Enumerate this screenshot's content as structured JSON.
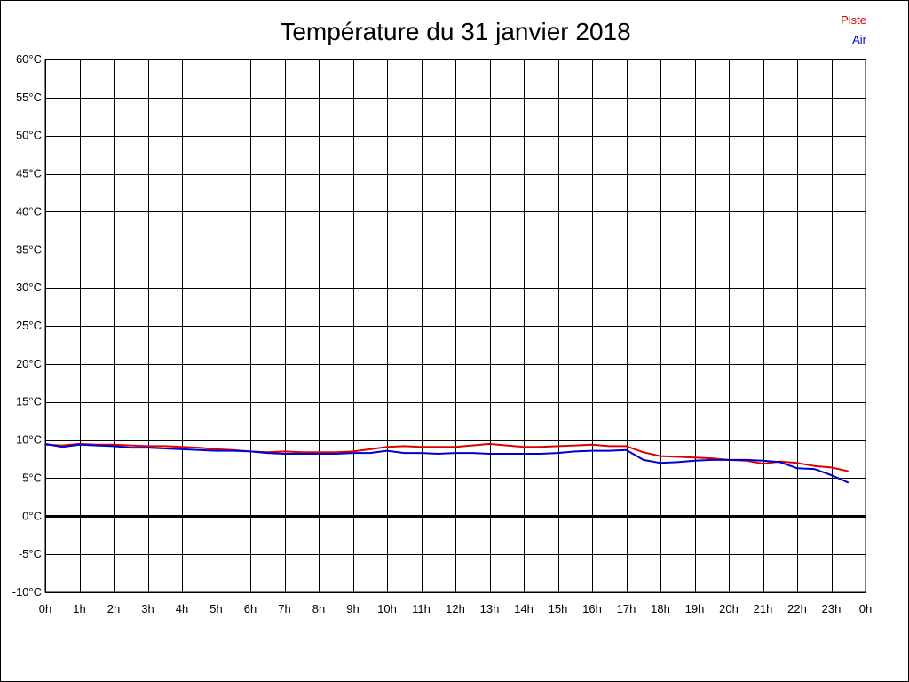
{
  "chart_data": {
    "type": "line",
    "title": "Température du 31 janvier 2018",
    "xlabel": "",
    "ylabel": "",
    "ylim": [
      -10,
      60
    ],
    "xlim": [
      0,
      24
    ],
    "grid": true,
    "legend_position": "top-right",
    "y_ticks": [
      "60°C",
      "55°C",
      "50°C",
      "45°C",
      "40°C",
      "35°C",
      "30°C",
      "25°C",
      "20°C",
      "15°C",
      "10°C",
      "5°C",
      "0°C",
      "-5°C",
      "-10°C"
    ],
    "x_ticks": [
      "0h",
      "1h",
      "2h",
      "3h",
      "4h",
      "5h",
      "6h",
      "7h",
      "8h",
      "9h",
      "10h",
      "11h",
      "12h",
      "13h",
      "14h",
      "15h",
      "16h",
      "17h",
      "18h",
      "19h",
      "20h",
      "21h",
      "22h",
      "23h",
      "0h"
    ],
    "series": [
      {
        "name": "Piste",
        "color": "#dd0000",
        "x": [
          0,
          0.5,
          1,
          1.5,
          2,
          2.5,
          3,
          3.5,
          4,
          4.5,
          5,
          5.5,
          6,
          6.5,
          7,
          7.5,
          8,
          8.5,
          9,
          9.5,
          10,
          10.5,
          11,
          11.5,
          12,
          12.5,
          13,
          13.5,
          14,
          14.5,
          15,
          15.5,
          16,
          16.5,
          17,
          17.5,
          18,
          18.5,
          19,
          19.5,
          20,
          20.5,
          21,
          21.5,
          22,
          22.5,
          23,
          23.5
        ],
        "values": [
          9.4,
          9.3,
          9.5,
          9.4,
          9.4,
          9.3,
          9.2,
          9.2,
          9.1,
          9.0,
          8.8,
          8.7,
          8.5,
          8.4,
          8.5,
          8.4,
          8.4,
          8.4,
          8.5,
          8.8,
          9.1,
          9.2,
          9.1,
          9.1,
          9.1,
          9.3,
          9.5,
          9.3,
          9.1,
          9.1,
          9.2,
          9.3,
          9.4,
          9.2,
          9.2,
          8.4,
          7.9,
          7.8,
          7.7,
          7.6,
          7.4,
          7.3,
          6.9,
          7.2,
          7.0,
          6.6,
          6.4,
          5.9
        ]
      },
      {
        "name": "Air",
        "color": "#0000cc",
        "x": [
          0,
          0.5,
          1,
          1.5,
          2,
          2.5,
          3,
          3.5,
          4,
          4.5,
          5,
          5.5,
          6,
          6.5,
          7,
          7.5,
          8,
          8.5,
          9,
          9.5,
          10,
          10.5,
          11,
          11.5,
          12,
          12.5,
          13,
          13.5,
          14,
          14.5,
          15,
          15.5,
          16,
          16.5,
          17,
          17.5,
          18,
          18.5,
          19,
          19.5,
          20,
          20.5,
          21,
          21.5,
          22,
          22.5,
          23,
          23.5
        ],
        "values": [
          9.5,
          9.1,
          9.4,
          9.3,
          9.2,
          9.0,
          9.0,
          8.9,
          8.8,
          8.7,
          8.6,
          8.6,
          8.5,
          8.3,
          8.2,
          8.2,
          8.2,
          8.2,
          8.3,
          8.3,
          8.6,
          8.3,
          8.3,
          8.2,
          8.3,
          8.3,
          8.2,
          8.2,
          8.2,
          8.2,
          8.3,
          8.5,
          8.6,
          8.6,
          8.7,
          7.4,
          7.0,
          7.1,
          7.3,
          7.4,
          7.4,
          7.4,
          7.3,
          7.1,
          6.3,
          6.2,
          5.4,
          4.4
        ]
      }
    ]
  }
}
